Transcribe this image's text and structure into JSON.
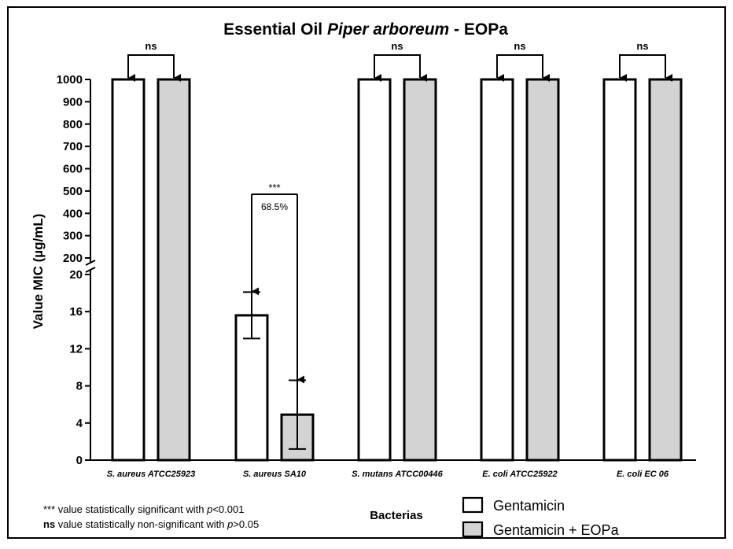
{
  "chart_data": {
    "type": "bar",
    "title_parts": [
      "Essential Oil ",
      "Piper arboreum",
      " - EOPa"
    ],
    "xlabel": "Bacterias",
    "ylabel": "Value MIC (µg/mL)",
    "categories": [
      {
        "species": "S. aureus",
        "strain": " ATCC25923"
      },
      {
        "species": "S. aureus",
        "strain": " SA10"
      },
      {
        "species": "S. mutans",
        "strain": " ATCC00446"
      },
      {
        "species": "E. coli",
        "strain": " ATCC25922"
      },
      {
        "species": "E. coli",
        "strain": " EC 06"
      }
    ],
    "series": [
      {
        "name": "Gentamicin",
        "color": "#ffffff",
        "values": [
          1000,
          15.6,
          1000,
          1000,
          1000
        ],
        "errors": [
          0,
          2.5,
          0,
          0,
          0
        ]
      },
      {
        "name": "Gentamicin + EOPa",
        "color": "#d3d3d3",
        "values": [
          1000,
          4.9,
          1000,
          1000,
          1000
        ],
        "errors": [
          0,
          3.7,
          0,
          0,
          0
        ]
      }
    ],
    "y_axis_broken": true,
    "y_lower_segment": {
      "range": [
        0,
        20
      ],
      "ticks": [
        "0",
        "4",
        "8",
        "12",
        "16",
        "20"
      ]
    },
    "y_upper_segment": {
      "range": [
        200,
        1000
      ],
      "ticks": [
        "200",
        "300",
        "400",
        "500",
        "600",
        "700",
        "800",
        "900",
        "1000"
      ]
    },
    "annotations": [
      {
        "category_index": 0,
        "label": "ns"
      },
      {
        "category_index": 1,
        "label": "***",
        "sublabel": "68.5%"
      },
      {
        "category_index": 2,
        "label": "ns"
      },
      {
        "category_index": 3,
        "label": "ns"
      },
      {
        "category_index": 4,
        "label": "ns"
      }
    ],
    "footnotes": [
      {
        "symbol": "***",
        "text_before": " value statistically significant with ",
        "p": "p",
        "text_after": "<0.001"
      },
      {
        "symbol": "ns",
        "text_before": "  value statistically non-significant with ",
        "p": "p",
        "text_after": ">0.05"
      }
    ],
    "legend": {
      "placement": "bottom-right"
    }
  }
}
